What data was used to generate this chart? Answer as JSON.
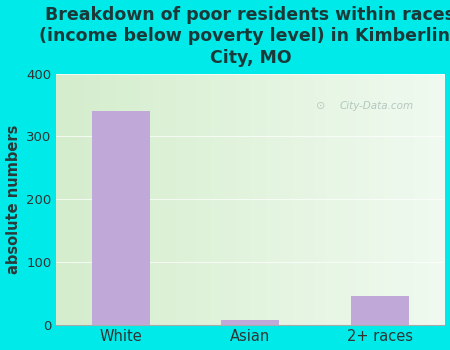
{
  "categories": [
    "White",
    "Asian",
    "2+ races"
  ],
  "values": [
    340,
    8,
    45
  ],
  "bar_color": "#c0a8d8",
  "title": "Breakdown of poor residents within races\n(income below poverty level) in Kimberling\nCity, MO",
  "ylabel": "absolute numbers",
  "ylim": [
    0,
    400
  ],
  "yticks": [
    0,
    100,
    200,
    300,
    400
  ],
  "bg_outer": "#00eaea",
  "bg_plot_left": "#d4edcc",
  "bg_plot_right": "#f0faf0",
  "watermark": "City-Data.com",
  "title_fontsize": 12.5,
  "label_fontsize": 10.5,
  "tick_fontsize": 9.5,
  "title_color": "#1a3a3a",
  "axis_label_color": "#2a3a3a",
  "tick_label_color": "#333333",
  "bar_width": 0.45
}
